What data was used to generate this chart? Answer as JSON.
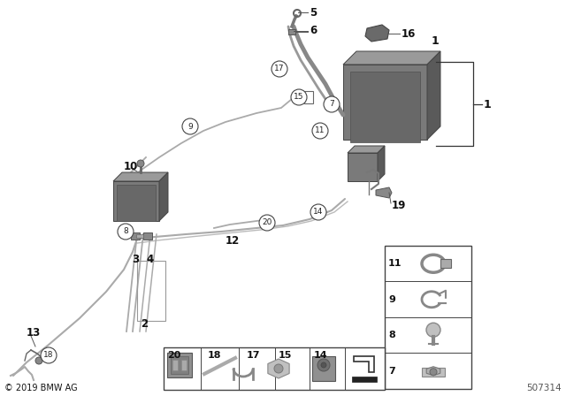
{
  "bg_color": "#ffffff",
  "diagram_number": "507314",
  "copyright": "© 2019 BMW AG",
  "fig_width": 6.4,
  "fig_height": 4.48,
  "dpi": 100,
  "line_color": "#888888",
  "dark_gray": "#555555",
  "mid_gray": "#999999",
  "light_gray": "#cccccc",
  "panel_bg": "#f5f5f5",
  "tank_face": "#7a7a7a",
  "tank_top": "#a0a0a0",
  "tank_right": "#606060"
}
